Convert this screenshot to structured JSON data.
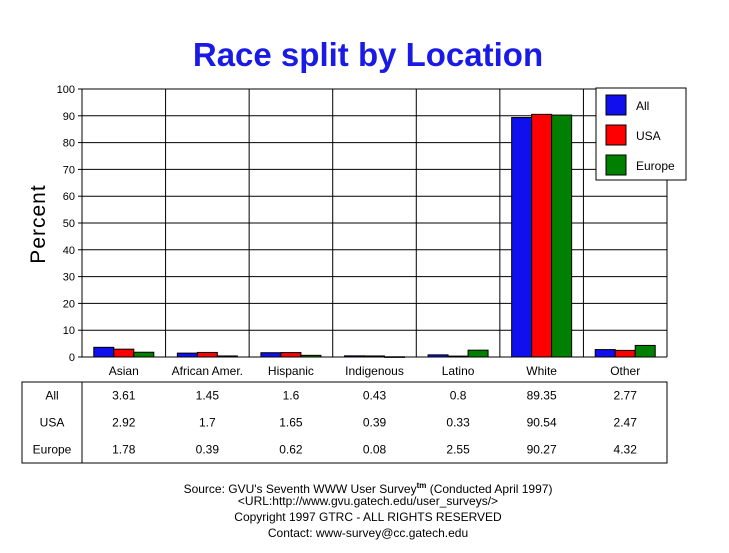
{
  "chart_data": {
    "type": "bar",
    "title": "Race split by Location",
    "ylabel": "Percent",
    "ylim": [
      0,
      100
    ],
    "yticks": [
      0,
      10,
      20,
      30,
      40,
      50,
      60,
      70,
      80,
      90,
      100
    ],
    "categories": [
      "Asian",
      "African Amer.",
      "Hispanic",
      "Indigenous",
      "Latino",
      "White",
      "Other"
    ],
    "series": [
      {
        "name": "All",
        "color": "#1010ee",
        "values": [
          3.61,
          1.45,
          1.6,
          0.43,
          0.8,
          89.35,
          2.77
        ],
        "labels": [
          "3.61",
          "1.45",
          "1.6",
          "0.43",
          "0.8",
          "89.35",
          "2.77"
        ]
      },
      {
        "name": "USA",
        "color": "#ff0000",
        "values": [
          2.92,
          1.7,
          1.65,
          0.39,
          0.33,
          90.54,
          2.47
        ],
        "labels": [
          "2.92",
          "1.7",
          "1.65",
          "0.39",
          "0.33",
          "90.54",
          "2.47"
        ]
      },
      {
        "name": "Europe",
        "color": "#008000",
        "values": [
          1.78,
          0.39,
          0.62,
          0.08,
          2.55,
          90.27,
          4.32
        ],
        "labels": [
          "1.78",
          "0.39",
          "0.62",
          "0.08",
          "2.55",
          "90.27",
          "4.32"
        ]
      }
    ],
    "legend_position": "top-right",
    "grid": true
  },
  "footer": {
    "source_prefix": "Source: GVU's Seventh WWW User Survey",
    "source_sup": "tm",
    "source_suffix": " (Conducted April 1997)",
    "url": "<URL:http://www.gvu.gatech.edu/user_surveys/>",
    "copyright": "Copyright 1997 GTRC - ALL RIGHTS RESERVED",
    "contact": "Contact: www-survey@cc.gatech.edu"
  }
}
